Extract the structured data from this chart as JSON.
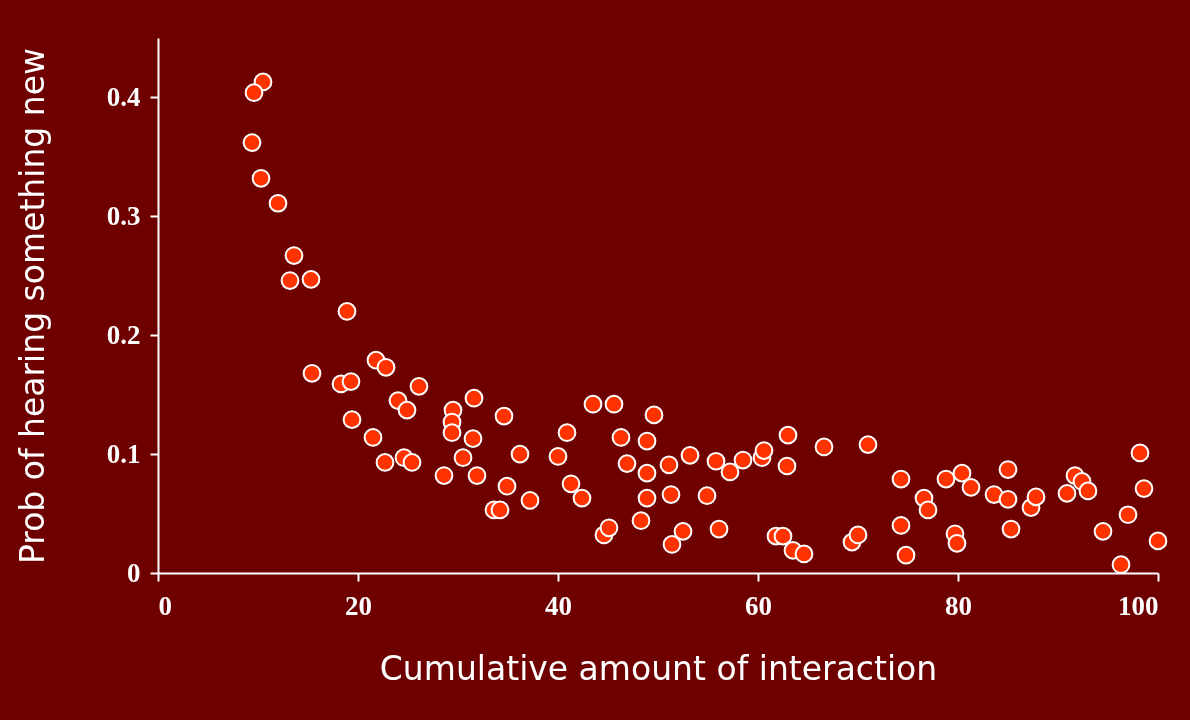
{
  "chart_data": {
    "type": "scatter",
    "xlabel": "Cumulative amount of interaction",
    "ylabel": "Prob of hearing something new",
    "xlim": [
      0,
      100
    ],
    "xticks": [
      0,
      20,
      40,
      60,
      80,
      100
    ],
    "ylim": [
      0,
      0.45
    ],
    "yticks": [
      0,
      0.1,
      0.2,
      0.3,
      0.4
    ],
    "grid": false,
    "marker": "circle",
    "series": [
      {
        "color": "#ff3300",
        "x": [
          10.5,
          9.6,
          9.4,
          10.3,
          12.0,
          13.6,
          13.2,
          15.3,
          18.9,
          15.4,
          18.3,
          19.3,
          21.8,
          22.8,
          19.4,
          21.5,
          22.7,
          24.0,
          24.9,
          26.1,
          24.6,
          25.4,
          28.6,
          29.5,
          29.4,
          29.4,
          31.6,
          31.5,
          30.5,
          31.9,
          33.6,
          34.2,
          34.6,
          34.9,
          36.2,
          37.2,
          40.0,
          40.9,
          41.3,
          42.4,
          43.5,
          45.6,
          44.6,
          45.1,
          46.3,
          46.9,
          48.3,
          48.9,
          48.9,
          48.9,
          49.6,
          51.1,
          51.3,
          51.4,
          52.5,
          53.2,
          54.9,
          55.8,
          56.1,
          57.2,
          58.5,
          60.4,
          60.6,
          61.8,
          62.5,
          63.0,
          62.9,
          63.5,
          64.6,
          66.6,
          71.0,
          69.4,
          70.0,
          74.3,
          74.3,
          74.8,
          76.6,
          77.0,
          78.8,
          79.7,
          79.9,
          80.4,
          81.3,
          83.6,
          85.0,
          85.0,
          85.3,
          87.3,
          87.8,
          90.9,
          91.7,
          92.4,
          93.0,
          94.5,
          96.3,
          97.0,
          98.2,
          98.6,
          100.0
        ],
        "values": [
          0.413,
          0.404,
          0.362,
          0.332,
          0.311,
          0.267,
          0.246,
          0.247,
          0.22,
          0.168,
          0.159,
          0.161,
          0.179,
          0.173,
          0.129,
          0.114,
          0.093,
          0.145,
          0.137,
          0.157,
          0.097,
          0.093,
          0.082,
          0.137,
          0.127,
          0.118,
          0.147,
          0.113,
          0.097,
          0.082,
          0.053,
          0.053,
          0.132,
          0.073,
          0.1,
          0.061,
          0.098,
          0.118,
          0.075,
          0.063,
          0.142,
          0.142,
          0.032,
          0.038,
          0.114,
          0.092,
          0.044,
          0.111,
          0.084,
          0.063,
          0.133,
          0.091,
          0.066,
          0.024,
          0.035,
          0.099,
          0.065,
          0.094,
          0.037,
          0.085,
          0.095,
          0.097,
          0.103,
          0.031,
          0.031,
          0.116,
          0.09,
          0.019,
          0.016,
          0.106,
          0.108,
          0.026,
          0.032,
          0.079,
          0.04,
          0.015,
          0.063,
          0.053,
          0.079,
          0.033,
          0.025,
          0.084,
          0.072,
          0.066,
          0.087,
          0.062,
          0.037,
          0.055,
          0.064,
          0.067,
          0.082,
          0.077,
          0.069,
          0.035,
          0.007,
          0.049,
          0.101,
          0.071,
          0.027
        ]
      }
    ]
  }
}
